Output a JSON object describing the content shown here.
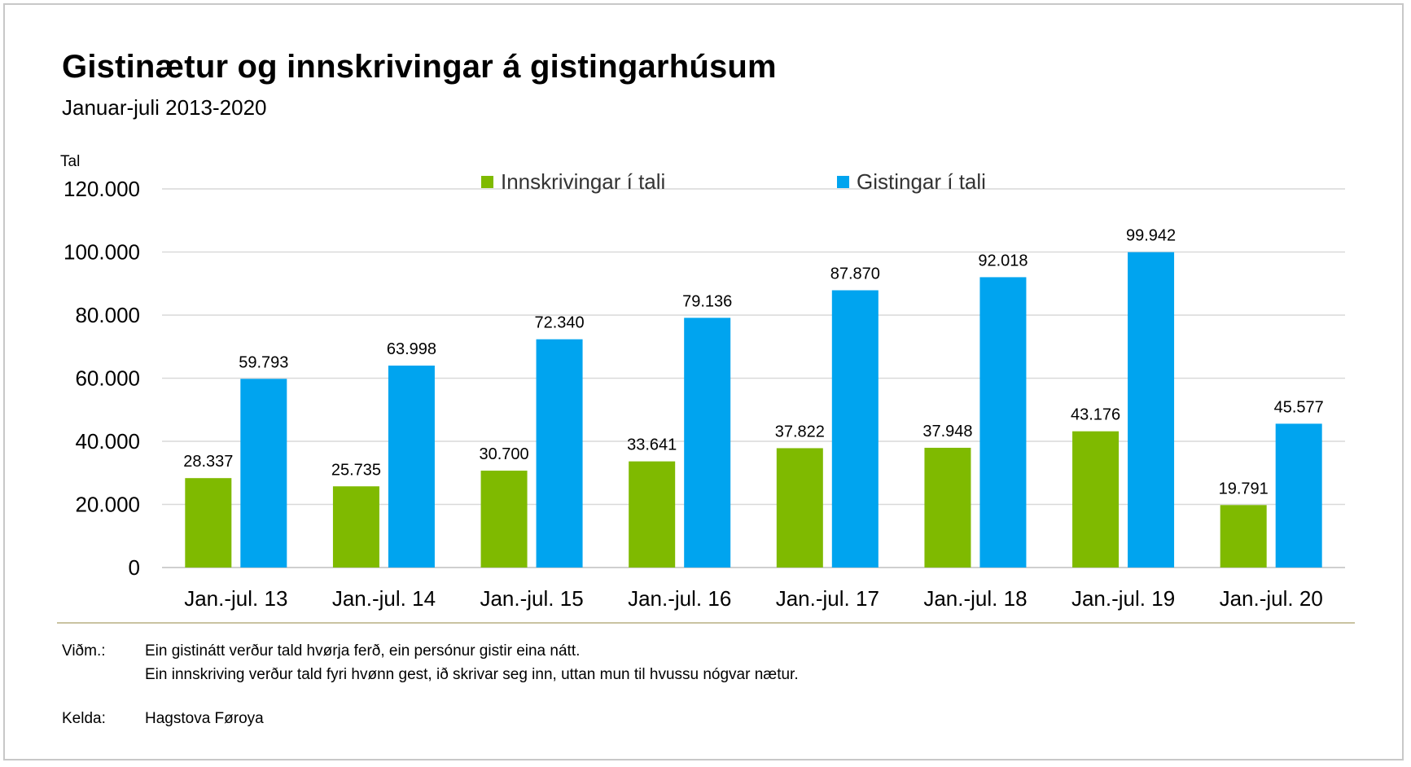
{
  "title": "Gistinætur og innskrivingar á gistingarhúsum",
  "subtitle": "Januar-juli 2013-2020",
  "chart_data": {
    "type": "bar",
    "title": "Gistinætur og innskrivingar á gistingarhúsum",
    "subtitle": "Januar-juli 2013-2020",
    "ylabel": "Tal",
    "xlabel": "",
    "ylim": [
      0,
      120000
    ],
    "yticks": [
      0,
      20000,
      40000,
      60000,
      80000,
      100000,
      120000
    ],
    "ytick_labels": [
      "0",
      "20.000",
      "40.000",
      "60.000",
      "80.000",
      "100.000",
      "120.000"
    ],
    "grid": true,
    "legend_position": "top-center",
    "categories": [
      "Jan.-jul. 13",
      "Jan.-jul. 14",
      "Jan.-jul. 15",
      "Jan.-jul. 16",
      "Jan.-jul. 17",
      "Jan.-jul. 18",
      "Jan.-jul. 19",
      "Jan.-jul. 20"
    ],
    "series": [
      {
        "name": "Innskrivingar í tali",
        "color": "#7fba00",
        "values": [
          28337,
          25735,
          30700,
          33641,
          37822,
          37948,
          43176,
          19791
        ],
        "labels": [
          "28.337",
          "25.735",
          "30.700",
          "33.641",
          "37.822",
          "37.948",
          "43.176",
          "19.791"
        ]
      },
      {
        "name": "Gistingar í tali",
        "color": "#00a4ef",
        "values": [
          59793,
          63998,
          72340,
          79136,
          87870,
          92018,
          99942,
          45577
        ],
        "labels": [
          "59.793",
          "63.998",
          "72.340",
          "79.136",
          "87.870",
          "92.018",
          "99.942",
          "45.577"
        ]
      }
    ]
  },
  "notes": {
    "label": "Viðm.:",
    "line1": "Ein gistinátt verður tald hvørja ferð, ein persónur gistir eina nátt.",
    "line2": "Ein innskriving verður tald fyri hvønn gest, ið skrivar seg inn, uttan mun til hvussu nógvar nætur."
  },
  "source": {
    "label": "Kelda:",
    "value": "Hagstova Føroya"
  },
  "colors": {
    "gridline": "#d9d9d9",
    "axis": "#bfbfbf",
    "footer_rule": "#c9c3a1"
  }
}
